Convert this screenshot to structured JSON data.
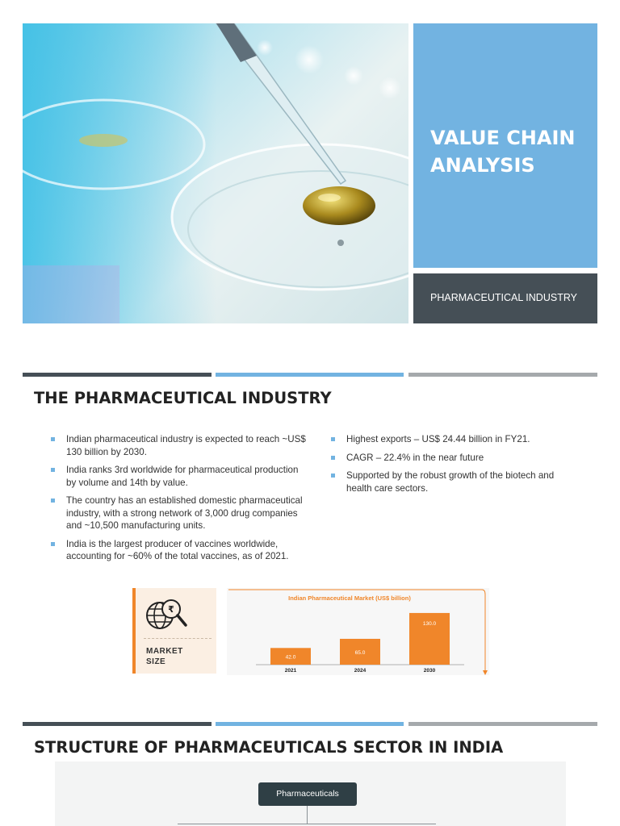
{
  "cover": {
    "title": "VALUE CHAIN ANALYSIS",
    "subtitle": "PHARMACEUTICAL INDUSTRY"
  },
  "colors": {
    "accent_blue": "#72b3e1",
    "dark_slate": "#454f56",
    "gray": "#a5a9ac",
    "orange": "#f0862a"
  },
  "industry": {
    "title": "THE PHARMACEUTICAL INDUSTRY",
    "left_bullets": [
      "Indian pharmaceutical industry is expected to reach ~US$ 130 billion by 2030.",
      "India ranks 3rd worldwide for pharmaceutical production by volume and 14th by value.",
      "The country has an established domestic pharmaceutical industry, with a strong network of 3,000 drug companies and ~10,500 manufacturing units.",
      "India is the largest producer of vaccines worldwide, accounting for ~60% of the total vaccines, as of 2021."
    ],
    "right_bullets": [
      "Highest exports – US$ 24.44 billion in FY21.",
      "CAGR – 22.4% in the near future",
      "Supported by the robust growth of the biotech and health care sectors."
    ],
    "market_card": {
      "icon": "globe-magnifier-rupee-icon",
      "label_line1": "MARKET",
      "label_line2": "SIZE"
    }
  },
  "chart_data": {
    "type": "bar",
    "title": "Indian Pharmaceutical Market (US$ billion)",
    "categories": [
      "2021",
      "2024",
      "2030"
    ],
    "values": [
      42.0,
      65.0,
      130.0
    ],
    "value_labels": [
      "42.0",
      "65.0",
      "130.0"
    ],
    "ylim": [
      0,
      140
    ],
    "color": "#f0862a",
    "grid": false,
    "legend": "none"
  },
  "structure": {
    "title": "STRUCTURE OF PHARMACEUTICALS SECTOR IN INDIA",
    "root_node": "Pharmaceuticals"
  }
}
